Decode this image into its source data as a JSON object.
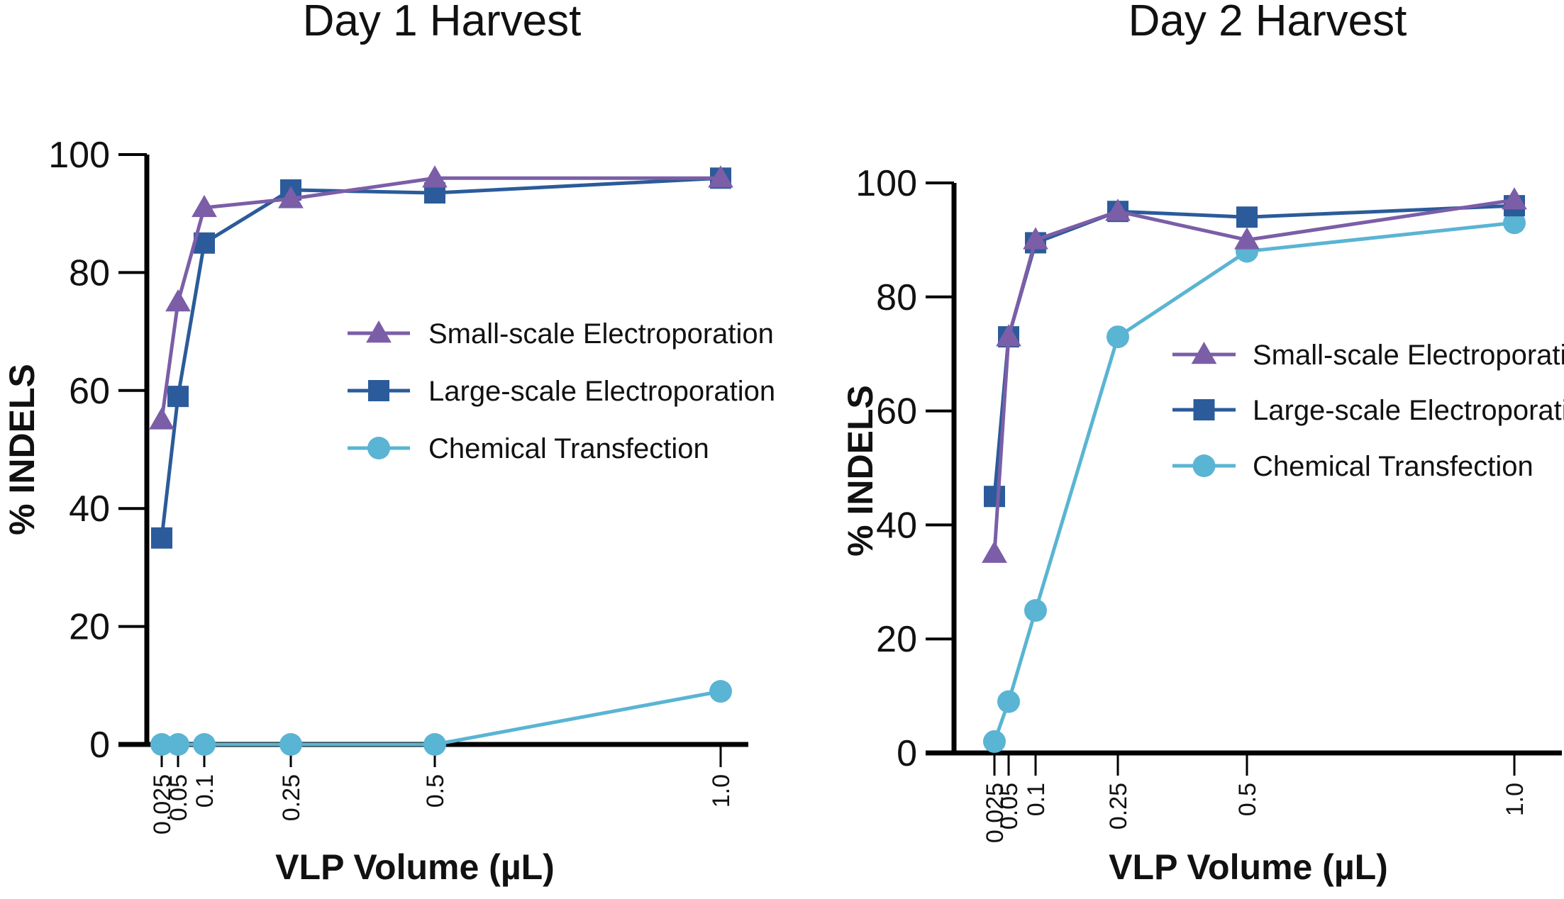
{
  "chart_data": [
    {
      "type": "line",
      "title": "Day 1 Harvest",
      "xlabel": "VLP Volume (µL)",
      "ylabel": "% INDELS",
      "x": [
        0.025,
        0.05,
        0.1,
        0.25,
        0.5,
        1.0
      ],
      "x_tick_labels": [
        "0.025",
        "0.05",
        "0.1",
        "0.25",
        "0.5",
        "1.0"
      ],
      "y_ticks": [
        0,
        20,
        40,
        60,
        80,
        100
      ],
      "ylim": [
        0,
        100
      ],
      "legend_position": "center-right",
      "series": [
        {
          "name": "Small-scale Electroporation",
          "marker": "triangle",
          "color": "#7b5ea7",
          "values": [
            55,
            75,
            91,
            92.5,
            96,
            96
          ]
        },
        {
          "name": "Large-scale Electroporation",
          "marker": "square",
          "color": "#2b5b9a",
          "values": [
            35,
            59,
            85,
            94,
            93.5,
            96
          ]
        },
        {
          "name": "Chemical Transfection",
          "marker": "circle",
          "color": "#5ab4d3",
          "values": [
            0,
            0,
            0,
            0,
            0,
            9
          ]
        }
      ]
    },
    {
      "type": "line",
      "title": "Day 2 Harvest",
      "xlabel": "VLP Volume (µL)",
      "ylabel": "% INDELS",
      "x": [
        0.025,
        0.05,
        0.1,
        0.25,
        0.5,
        1.0
      ],
      "x_tick_labels": [
        "0.025",
        "0.05",
        "0.1",
        "0.25",
        "0.5",
        "1.0"
      ],
      "y_ticks": [
        0,
        20,
        40,
        60,
        80,
        100
      ],
      "ylim": [
        0,
        100
      ],
      "legend_position": "center-right",
      "series": [
        {
          "name": "Small-scale Electroporation",
          "marker": "triangle",
          "color": "#7b5ea7",
          "values": [
            35,
            73,
            90,
            95,
            90,
            97
          ]
        },
        {
          "name": "Large-scale Electroporation",
          "marker": "square",
          "color": "#2b5b9a",
          "values": [
            45,
            73,
            89.5,
            95,
            94,
            96
          ]
        },
        {
          "name": "Chemical Transfection",
          "marker": "circle",
          "color": "#5ab4d3",
          "values": [
            2,
            9,
            25,
            73,
            88,
            93
          ]
        }
      ]
    }
  ]
}
